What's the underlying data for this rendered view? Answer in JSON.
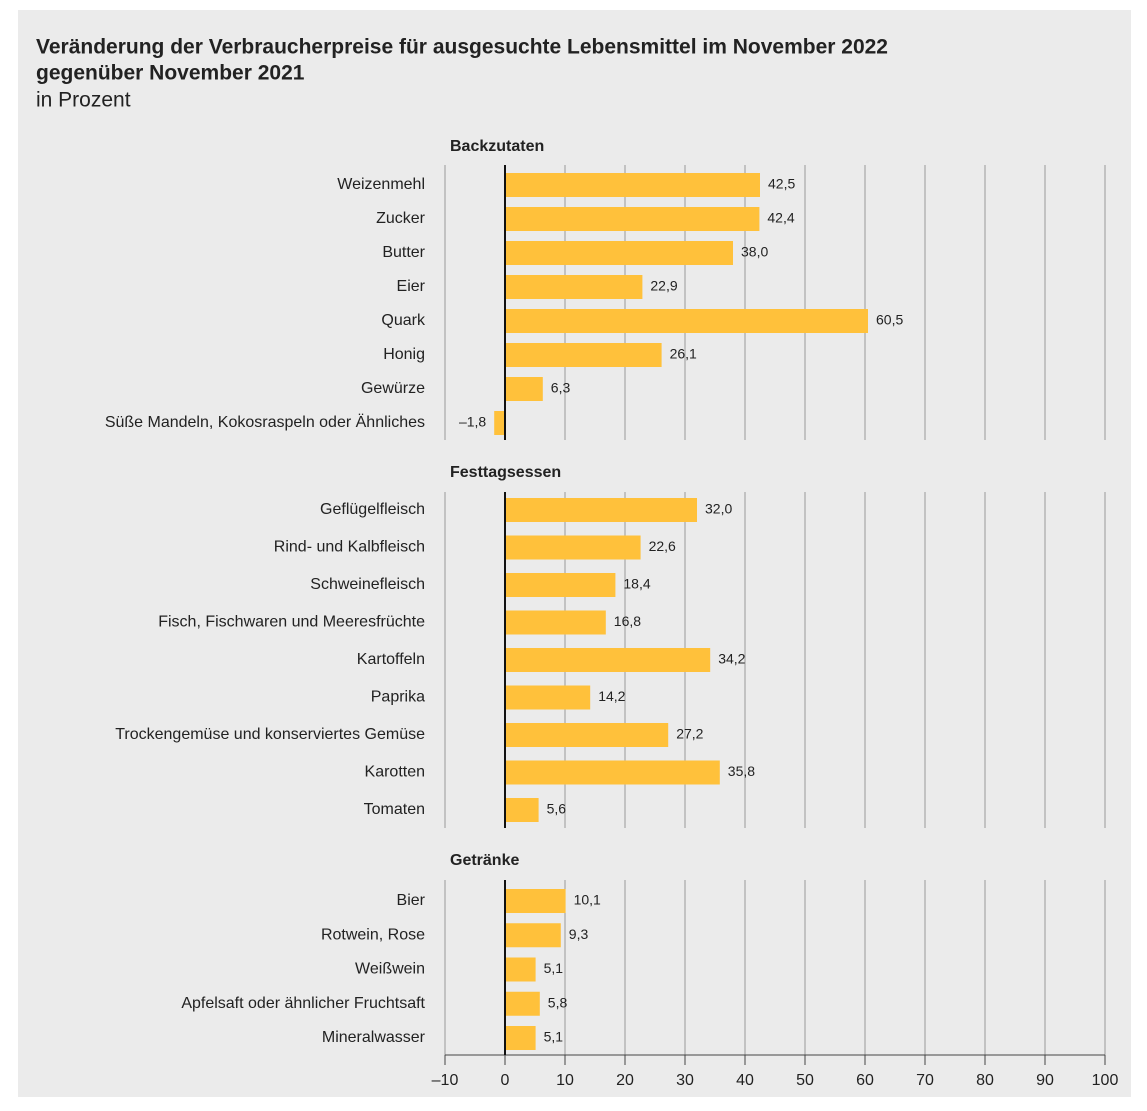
{
  "title": "Veränderung der Verbraucherpreise für ausgesuchte Lebensmittel im November 2022 gegenüber November 2021",
  "subtitle": "in Prozent",
  "chart_data": [
    {
      "type": "bar",
      "orientation": "horizontal",
      "title": "Backzutaten",
      "color": "#ffc13b",
      "categories": [
        "Weizenmehl",
        "Zucker",
        "Butter",
        "Eier",
        "Quark",
        "Honig",
        "Gewürze",
        "Süße Mandeln, Kokosraspeln oder Ähnliches"
      ],
      "values": [
        42.5,
        42.4,
        38.0,
        22.9,
        60.5,
        26.1,
        6.3,
        -1.8
      ],
      "value_labels": [
        "42,5",
        "42,4",
        "38,0",
        "22,9",
        "60,5",
        "26,1",
        "6,3",
        "–1,8"
      ],
      "xlim": [
        -10,
        100
      ],
      "xticks": [
        {
          "value": -10,
          "label": "–10"
        },
        0,
        10,
        20,
        30,
        40,
        50,
        60,
        70,
        80,
        90,
        100
      ],
      "grid": true
    },
    {
      "type": "bar",
      "orientation": "horizontal",
      "title": "Festtagsessen",
      "color": "#ffc13b",
      "categories": [
        "Geflügelfleisch",
        "Rind- und Kalbfleisch",
        "Schweinefleisch",
        "Fisch, Fischwaren und Meeresfrüchte",
        "Kartoffeln",
        "Paprika",
        "Trockengemüse und konserviertes Gemüse",
        "Karotten",
        "Tomaten"
      ],
      "values": [
        32.0,
        22.6,
        18.4,
        16.8,
        34.2,
        14.2,
        27.2,
        35.8,
        5.6
      ],
      "value_labels": [
        "32,0",
        "22,6",
        "18,4",
        "16,8",
        "34,2",
        "14,2",
        "27,2",
        "35,8",
        "5,6"
      ],
      "xlim": [
        -10,
        100
      ],
      "xticks": [
        {
          "value": -10,
          "label": "–10"
        },
        0,
        10,
        20,
        30,
        40,
        50,
        60,
        70,
        80,
        90,
        100
      ],
      "grid": true
    },
    {
      "type": "bar",
      "orientation": "horizontal",
      "title": "Getränke",
      "color": "#ffc13b",
      "categories": [
        "Bier",
        "Rotwein, Rose",
        "Weißwein",
        "Apfelsaft oder ähnlicher Fruchtsaft",
        "Mineralwasser"
      ],
      "values": [
        10.1,
        9.3,
        5.1,
        5.8,
        5.1
      ],
      "value_labels": [
        "10,1",
        "9,3",
        "5,1",
        "5,8",
        "5,1"
      ],
      "xlim": [
        -10,
        100
      ],
      "xticks": [
        {
          "value": -10,
          "label": "–10"
        },
        0,
        10,
        20,
        30,
        40,
        50,
        60,
        70,
        80,
        90,
        100
      ],
      "grid": true,
      "show_tick_labels": true
    }
  ]
}
